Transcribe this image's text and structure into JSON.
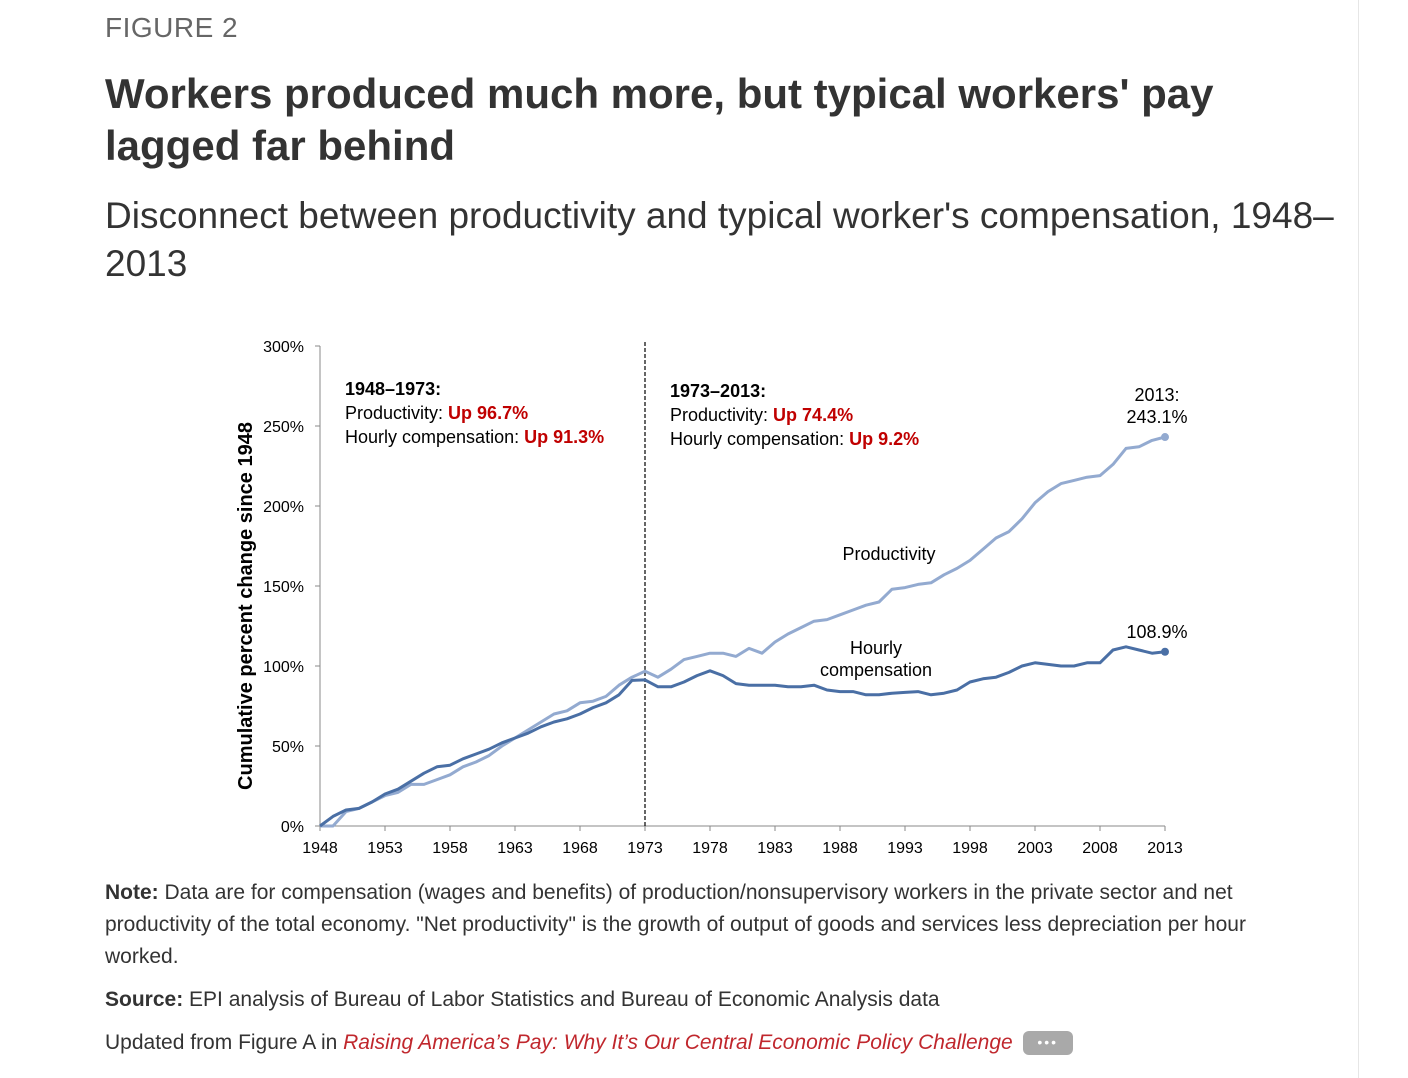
{
  "figure_label": "FIGURE 2",
  "title": "Workers produced much more, but typical workers' pay lagged far behind",
  "subtitle": "Disconnect between productivity and typical worker's compensation, 1948–2013",
  "colors": {
    "productivity": "#93aad0",
    "compensation": "#4a6fa5",
    "highlight": "#c00000",
    "link": "#c0272d"
  },
  "chart_data": {
    "type": "line",
    "ylabel": "Cumulative percent change since 1948",
    "ylim": [
      0,
      300
    ],
    "xlim": [
      1948,
      2013
    ],
    "x_ticks": [
      "1948",
      "1953",
      "1958",
      "1963",
      "1968",
      "1973",
      "1978",
      "1983",
      "1988",
      "1993",
      "1998",
      "2003",
      "2008",
      "2013"
    ],
    "y_ticks": [
      "0%",
      "50%",
      "100%",
      "150%",
      "200%",
      "250%",
      "300%"
    ],
    "vline_x": 1973,
    "x": [
      1948,
      1949,
      1950,
      1951,
      1952,
      1953,
      1954,
      1955,
      1956,
      1957,
      1958,
      1959,
      1960,
      1961,
      1962,
      1963,
      1964,
      1965,
      1966,
      1967,
      1968,
      1969,
      1970,
      1971,
      1972,
      1973,
      1974,
      1975,
      1976,
      1977,
      1978,
      1979,
      1980,
      1981,
      1982,
      1983,
      1984,
      1985,
      1986,
      1987,
      1988,
      1989,
      1990,
      1991,
      1992,
      1993,
      1994,
      1995,
      1996,
      1997,
      1998,
      1999,
      2000,
      2001,
      2002,
      2003,
      2004,
      2005,
      2006,
      2007,
      2008,
      2009,
      2010,
      2011,
      2012,
      2013
    ],
    "series": [
      {
        "name": "Productivity",
        "label_lines": [
          "Productivity"
        ],
        "values": [
          0,
          0,
          9,
          11,
          15,
          19,
          21,
          26,
          26,
          29,
          32,
          37,
          40,
          44,
          50,
          55,
          60,
          65,
          70,
          72,
          77,
          78,
          81,
          88,
          93,
          96.7,
          93,
          98,
          104,
          106,
          108,
          108,
          106,
          111,
          108,
          115,
          120,
          124,
          128,
          129,
          132,
          135,
          138,
          140,
          148,
          149,
          151,
          152,
          157,
          161,
          166,
          173,
          180,
          184,
          192,
          202,
          209,
          214,
          216,
          218,
          219,
          226,
          236,
          237,
          241,
          243.1
        ],
        "end_label": [
          "2013:",
          "243.1%"
        ]
      },
      {
        "name": "Hourly compensation",
        "label_lines": [
          "Hourly",
          "compensation"
        ],
        "values": [
          0,
          6,
          10,
          11,
          15,
          20,
          23,
          28,
          33,
          37,
          38,
          42,
          45,
          48,
          52,
          55,
          58,
          62,
          65,
          67,
          70,
          74,
          77,
          82,
          91,
          91.3,
          87,
          87,
          90,
          94,
          97,
          94,
          89,
          88,
          88,
          88,
          87,
          87,
          88,
          85,
          84,
          84,
          82,
          82,
          83,
          83.5,
          84,
          82,
          83,
          85,
          90,
          92,
          93,
          96,
          100,
          102,
          101,
          100,
          100,
          102,
          102,
          110,
          112,
          110,
          108,
          108.9
        ],
        "end_label": [
          "108.9%"
        ]
      }
    ],
    "annotations": [
      {
        "heading": "1948–1973:",
        "rows": [
          {
            "label": "Productivity: ",
            "value": "Up 96.7%"
          },
          {
            "label": "Hourly compensation: ",
            "value": "Up 91.3%"
          }
        ]
      },
      {
        "heading": "1973–2013:",
        "rows": [
          {
            "label": "Productivity: ",
            "value": "Up 74.4%"
          },
          {
            "label": "Hourly compensation: ",
            "value": "Up 9.2%"
          }
        ]
      }
    ]
  },
  "note": {
    "label": "Note:",
    "text": " Data are for compensation (wages and benefits) of production/nonsupervisory workers in the private sector and net productivity of the total economy. \"Net productivity\" is the growth of output of goods and services less depreciation per hour worked."
  },
  "source": {
    "label": "Source:",
    "text": " EPI analysis of Bureau of Labor Statistics and Bureau of Economic Analysis data"
  },
  "updated": {
    "prefix": "Updated from Figure A in ",
    "link_text": "Raising America’s Pay: Why It’s Our Central Economic Policy Challenge",
    "more_icon": "more-dots-icon"
  }
}
